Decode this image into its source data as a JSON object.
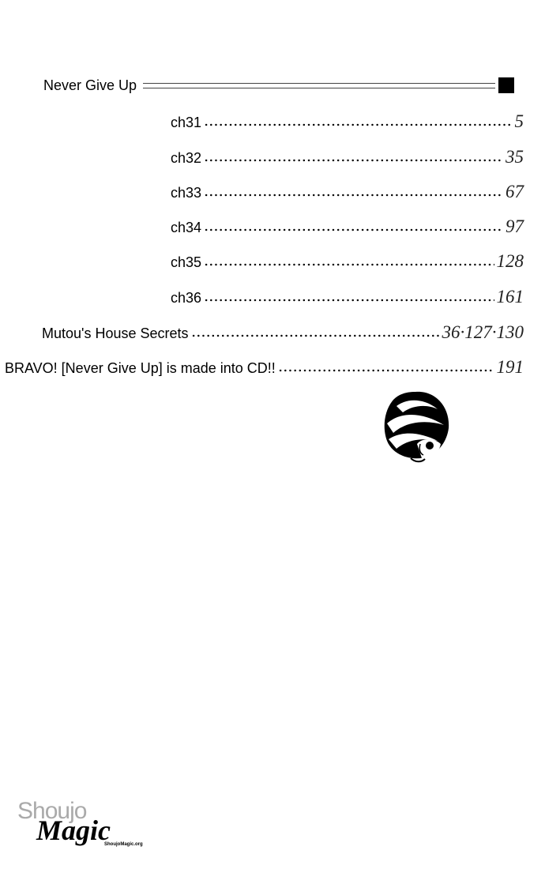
{
  "section": {
    "title": "Never Give Up"
  },
  "entries": [
    {
      "label": "ch31",
      "page": "5"
    },
    {
      "label": "ch32",
      "page": "35"
    },
    {
      "label": "ch33",
      "page": "67"
    },
    {
      "label": "ch34",
      "page": "97"
    },
    {
      "label": "ch35",
      "page": "128"
    },
    {
      "label": "ch36",
      "page": "161"
    },
    {
      "label": "Mutou's House Secrets",
      "page": "36·127·130"
    },
    {
      "label": "BRAVO! [Never Give Up] is made into CD!!",
      "page": "191"
    }
  ],
  "watermark": {
    "line1": "Shoujo",
    "line2": "Magic",
    "url": "ShoujoMagic.org"
  }
}
